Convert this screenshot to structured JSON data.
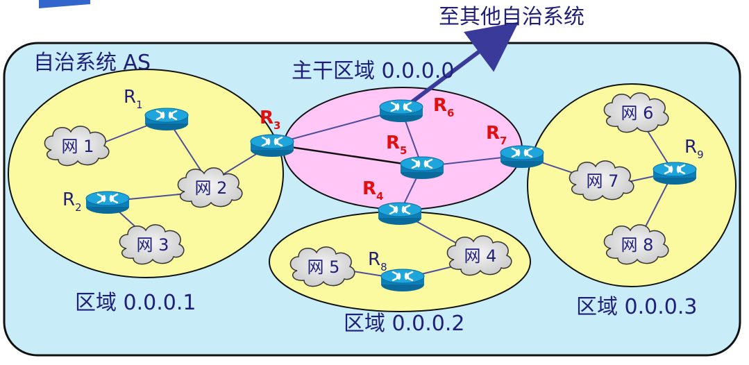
{
  "labels": {
    "external": "至其他自治系统",
    "as": "自治系统 AS",
    "backbone": "主干区域 0.0.0.0",
    "area1": "区域 0.0.0.1",
    "area2": "区域 0.0.0.2",
    "area3": "区域 0.0.0.3"
  },
  "routers": [
    {
      "name": "R",
      "sub": "1",
      "highlight": false
    },
    {
      "name": "R",
      "sub": "2",
      "highlight": false
    },
    {
      "name": "R",
      "sub": "3",
      "highlight": true
    },
    {
      "name": "R",
      "sub": "4",
      "highlight": true
    },
    {
      "name": "R",
      "sub": "5",
      "highlight": true
    },
    {
      "name": "R",
      "sub": "6",
      "highlight": true
    },
    {
      "name": "R",
      "sub": "7",
      "highlight": true
    },
    {
      "name": "R",
      "sub": "8",
      "highlight": false
    },
    {
      "name": "R",
      "sub": "9",
      "highlight": false
    }
  ],
  "networks": [
    "网 1",
    "网 2",
    "网 3",
    "网 4",
    "网 5",
    "网 6",
    "网 7",
    "网 8"
  ],
  "colors": {
    "as_fill": "#c8ecf8",
    "area_fill": "#fbfaa0",
    "backbone_fill": "#ffc6f6",
    "router_top": "#1aa0d8",
    "router_body": "#0d7fb8",
    "line": "#4d4d9a",
    "arrow": "#3a3a9a",
    "label": "#1f1f7a",
    "highlight": "#e01010"
  }
}
